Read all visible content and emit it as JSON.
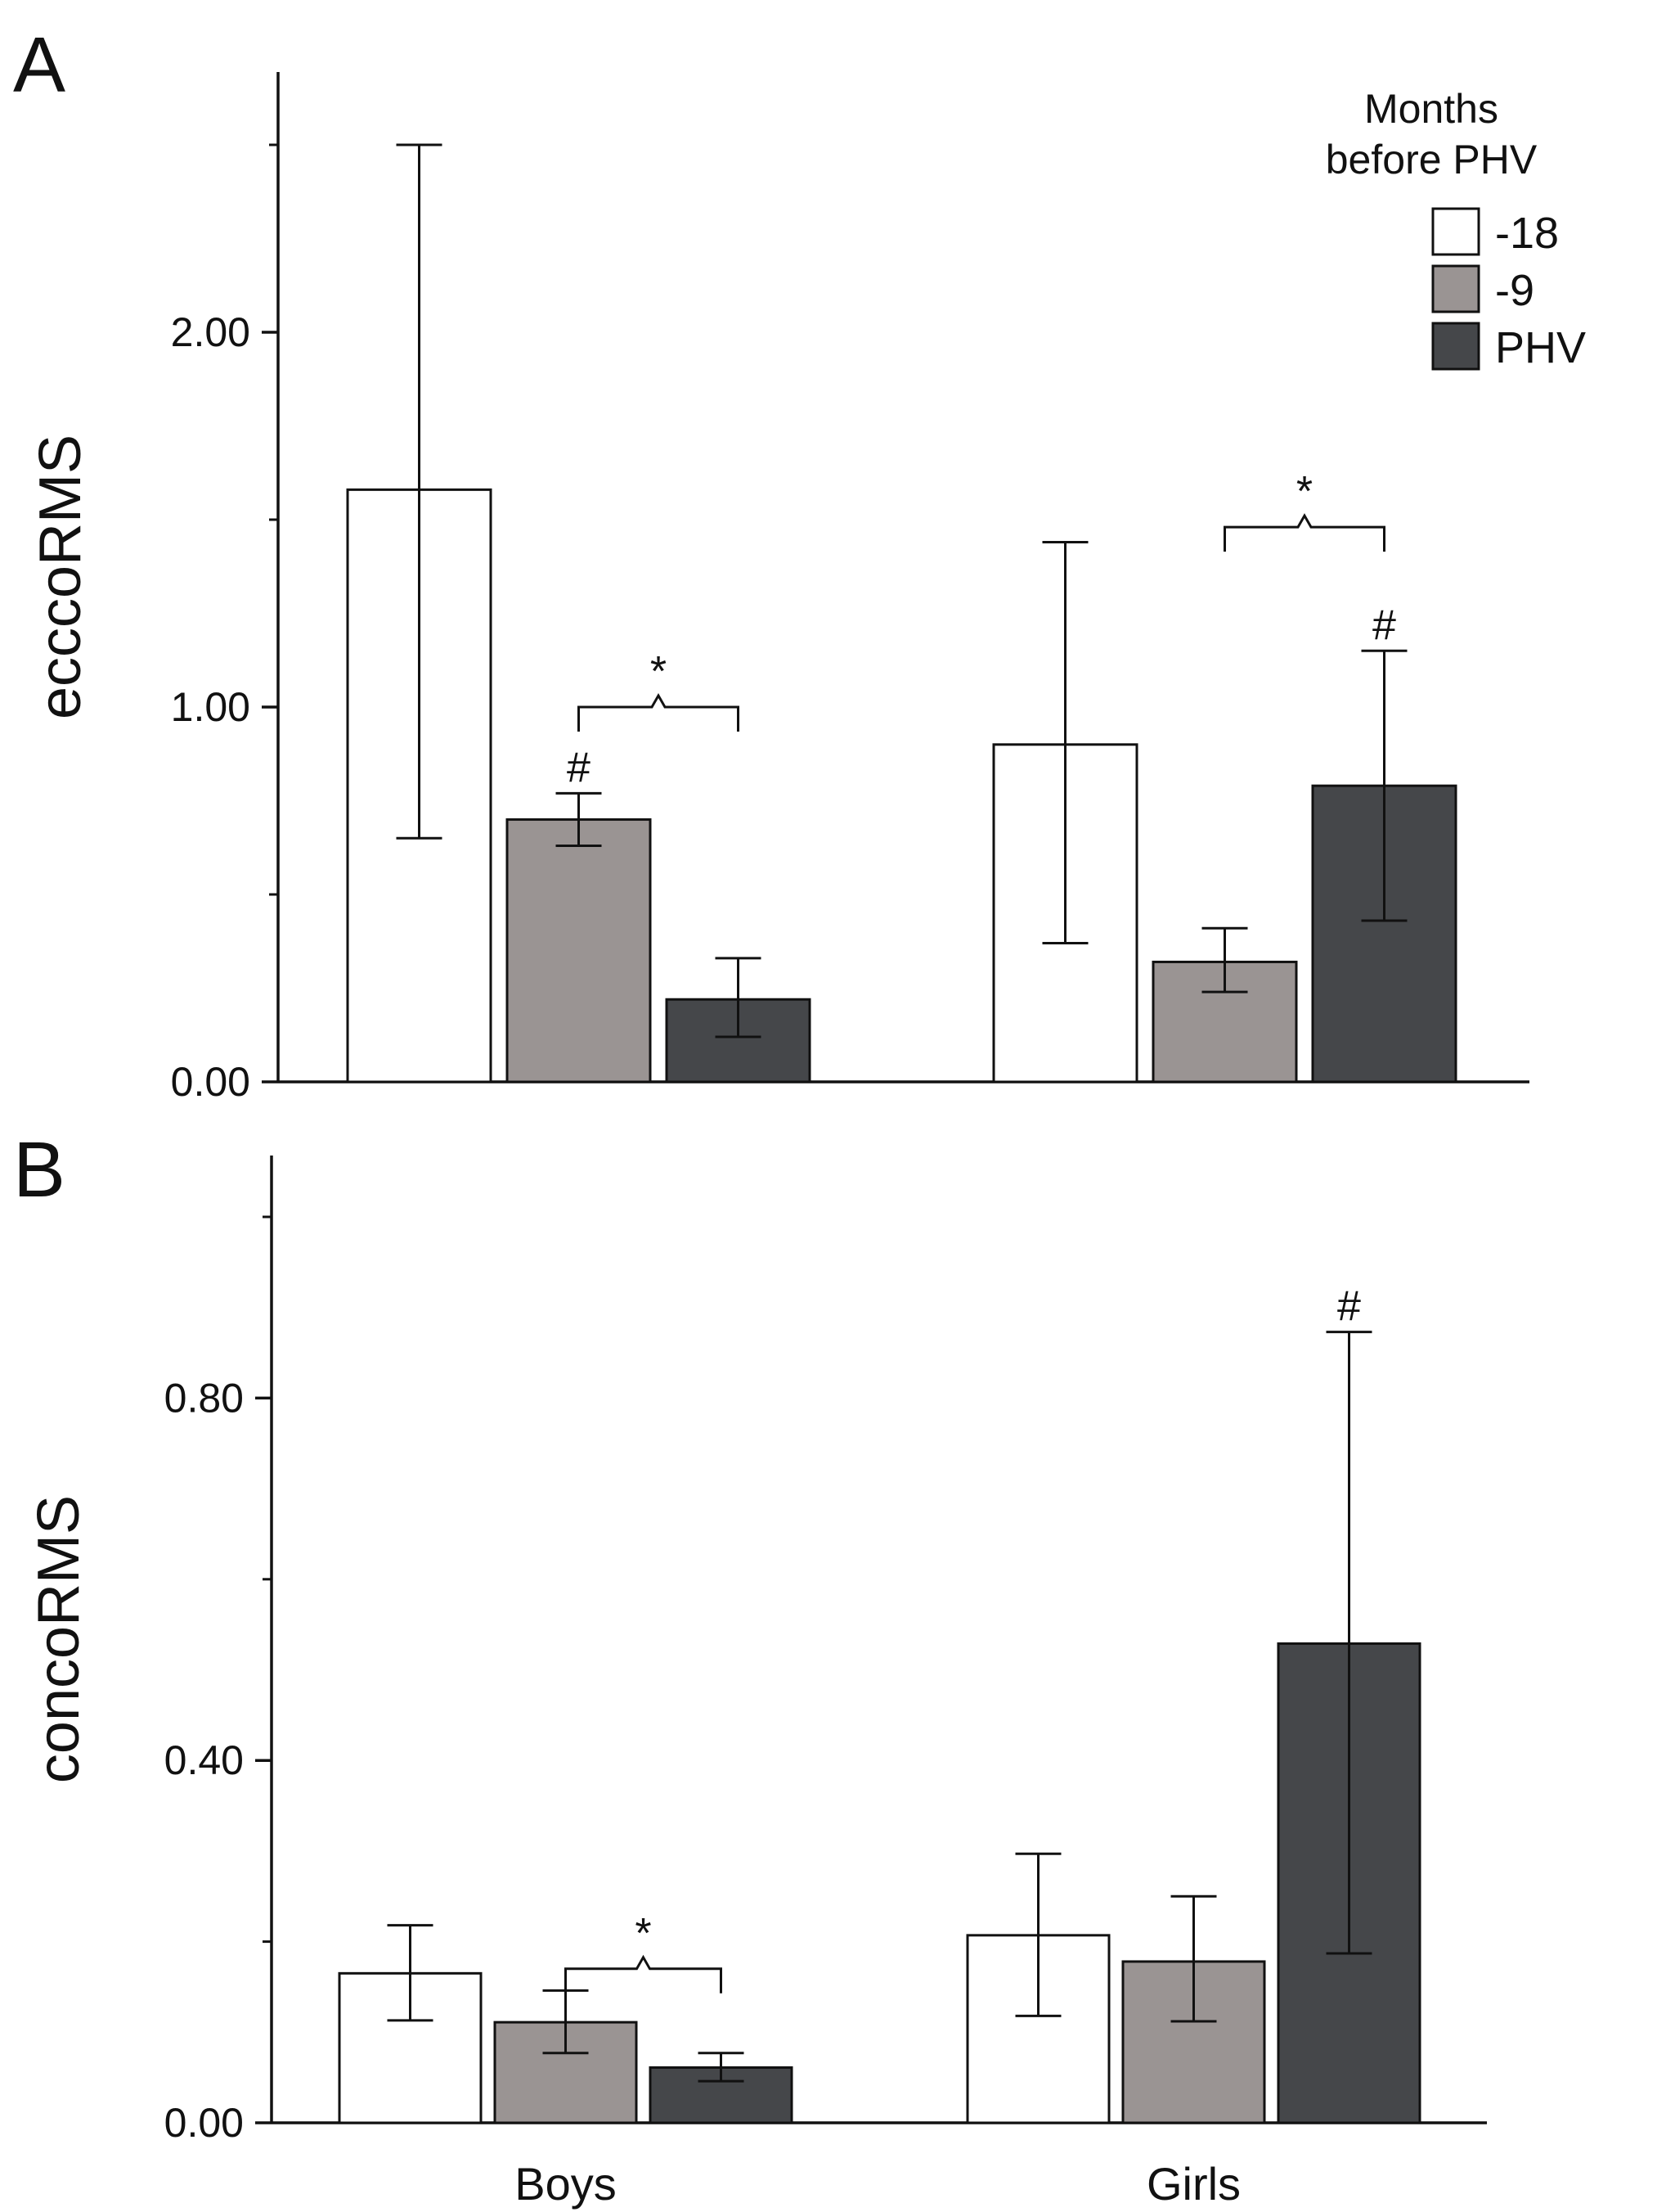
{
  "colors": {
    "m18": "#ffffff",
    "m9": "#9a9493",
    "phv": "#45474a",
    "axis": "#111111"
  },
  "chart_data": [
    {
      "type": "bar",
      "panel": "A",
      "ylabel": "ecccoRMS",
      "xlabel": "",
      "categories": [
        "Boys",
        "Girls"
      ],
      "ylim": [
        0,
        2.6
      ],
      "yticks": [
        0.0,
        1.0,
        2.0
      ],
      "ytick_labels": [
        "0.00",
        "1.00",
        "2.00"
      ],
      "legend": {
        "title_line1": "Months",
        "title_line2": "before PHV",
        "position": "top-right",
        "entries": [
          "-18",
          "-9",
          "PHV"
        ]
      },
      "series": [
        {
          "name": "-18",
          "color_key": "m18",
          "values": [
            1.58,
            0.9
          ],
          "err_low": [
            0.65,
            0.37
          ],
          "err_high": [
            2.5,
            1.44
          ]
        },
        {
          "name": "-9",
          "color_key": "m9",
          "values": [
            0.7,
            0.32
          ],
          "err_low": [
            0.63,
            0.24
          ],
          "err_high": [
            0.77,
            0.41
          ]
        },
        {
          "name": "PHV",
          "color_key": "phv",
          "values": [
            0.22,
            0.79
          ],
          "err_low": [
            0.12,
            0.43
          ],
          "err_high": [
            0.33,
            1.15
          ]
        }
      ],
      "hash_marks": [
        {
          "category": 0,
          "series": 1,
          "label": "#"
        },
        {
          "category": 1,
          "series": 2,
          "label": "#"
        }
      ],
      "brackets": [
        {
          "category": 0,
          "from_series": 1,
          "to_series": 2,
          "label": "*",
          "y": 1.0
        },
        {
          "category": 1,
          "from_series": 1,
          "to_series": 2,
          "label": "*",
          "y": 1.48
        }
      ]
    },
    {
      "type": "bar",
      "panel": "B",
      "ylabel": "concoRMS",
      "xlabel": "",
      "categories": [
        "Boys",
        "Girls"
      ],
      "ylim": [
        0,
        1.07
      ],
      "yticks": [
        0.0,
        0.4,
        0.8
      ],
      "ytick_labels": [
        "0.00",
        "0.40",
        "0.80"
      ],
      "series": [
        {
          "name": "-18",
          "color_key": "m18",
          "values": [
            0.165,
            0.207
          ],
          "err_low": [
            0.113,
            0.118
          ],
          "err_high": [
            0.218,
            0.297
          ]
        },
        {
          "name": "-9",
          "color_key": "m9",
          "values": [
            0.111,
            0.178
          ],
          "err_low": [
            0.077,
            0.112
          ],
          "err_high": [
            0.146,
            0.25
          ]
        },
        {
          "name": "PHV",
          "color_key": "phv",
          "values": [
            0.061,
            0.529
          ],
          "err_low": [
            0.046,
            0.187
          ],
          "err_high": [
            0.077,
            0.873
          ]
        }
      ],
      "hash_marks": [
        {
          "category": 1,
          "series": 2,
          "label": "#"
        }
      ],
      "brackets": [
        {
          "category": 0,
          "from_series": 1,
          "to_series": 2,
          "label": "*",
          "y": 0.17
        }
      ]
    }
  ]
}
